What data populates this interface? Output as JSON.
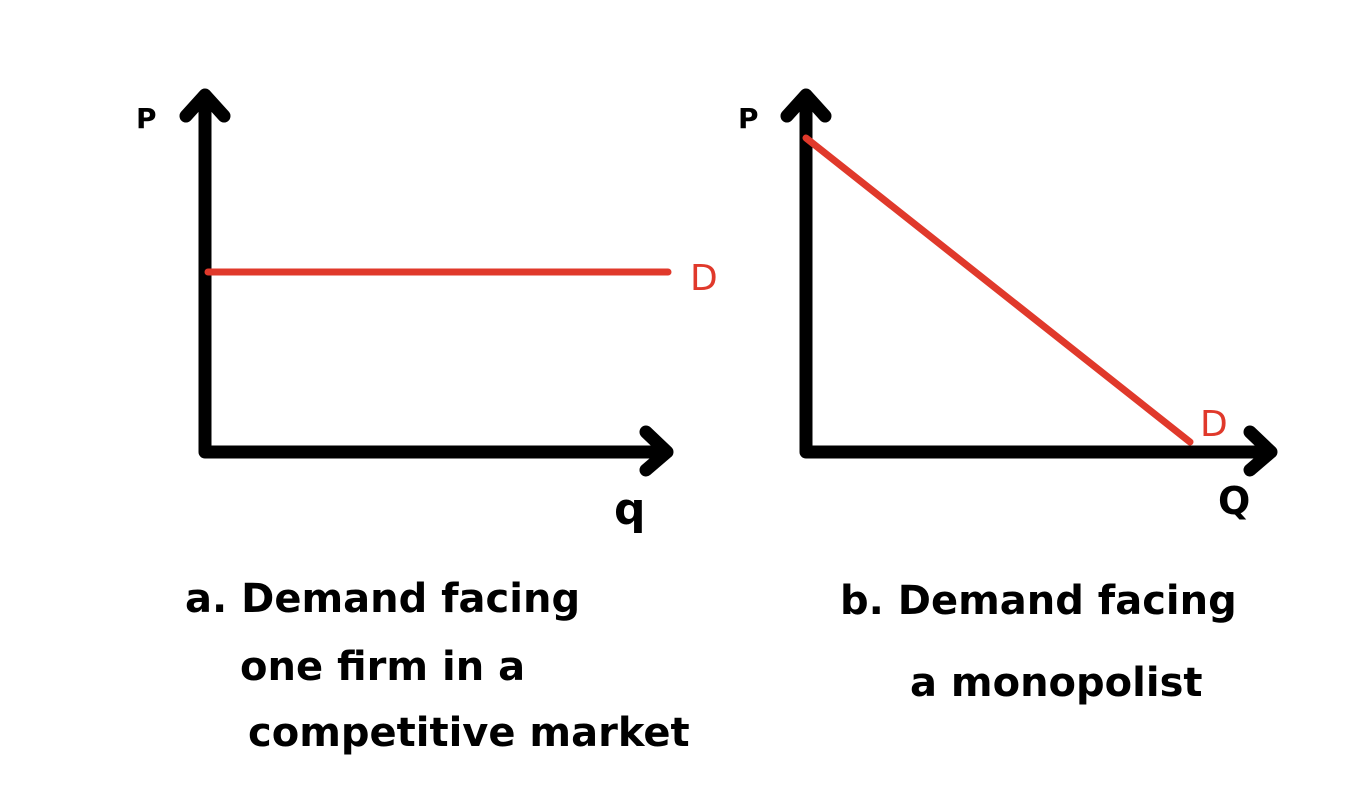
{
  "panel_a": {
    "y_axis_label": "P",
    "x_axis_label": "q",
    "curve_label": "D",
    "curve": "horizontal",
    "caption_lines": [
      "a. Demand facing",
      "one firm in a",
      "competitive market"
    ]
  },
  "panel_b": {
    "y_axis_label": "P",
    "x_axis_label": "Q",
    "curve_label": "D",
    "curve": "downward-sloping",
    "caption_lines": [
      "b. Demand facing",
      "a monopolist"
    ]
  },
  "colors": {
    "axis": "#000000",
    "demand": "#e0392b"
  }
}
